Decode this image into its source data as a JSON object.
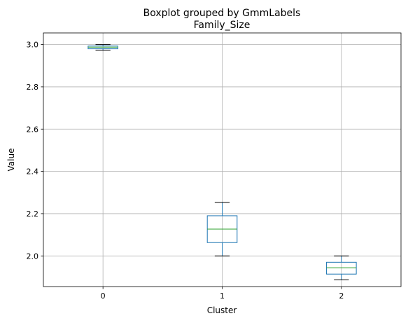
{
  "chart_data": {
    "type": "box",
    "suptitle": "Boxplot grouped by GmmLabels",
    "title": "Family_Size",
    "xlabel": "Cluster",
    "ylabel": "Value",
    "categories": [
      "0",
      "1",
      "2"
    ],
    "yticks": [
      "2.0",
      "2.2",
      "2.4",
      "2.6",
      "2.8",
      "3.0"
    ],
    "ytick_values": [
      2.0,
      2.2,
      2.4,
      2.6,
      2.8,
      3.0
    ],
    "ylim": [
      1.855,
      3.055
    ],
    "grid": true,
    "boxes": [
      {
        "category": "0",
        "whisker_low": 2.973,
        "q1": 2.98,
        "median": 2.988,
        "q3": 2.993,
        "whisker_high": 3.0
      },
      {
        "category": "1",
        "whisker_low": 2.0,
        "q1": 2.063,
        "median": 2.127,
        "q3": 2.19,
        "whisker_high": 2.253
      },
      {
        "category": "2",
        "whisker_low": 1.887,
        "q1": 1.914,
        "median": 1.944,
        "q3": 1.97,
        "whisker_high": 2.0
      }
    ],
    "colors": {
      "box": "#1f77b4",
      "median": "#2ca02c",
      "whisker": "#1f77b4",
      "cap": "#000000",
      "grid": "#b0b0b0"
    }
  }
}
